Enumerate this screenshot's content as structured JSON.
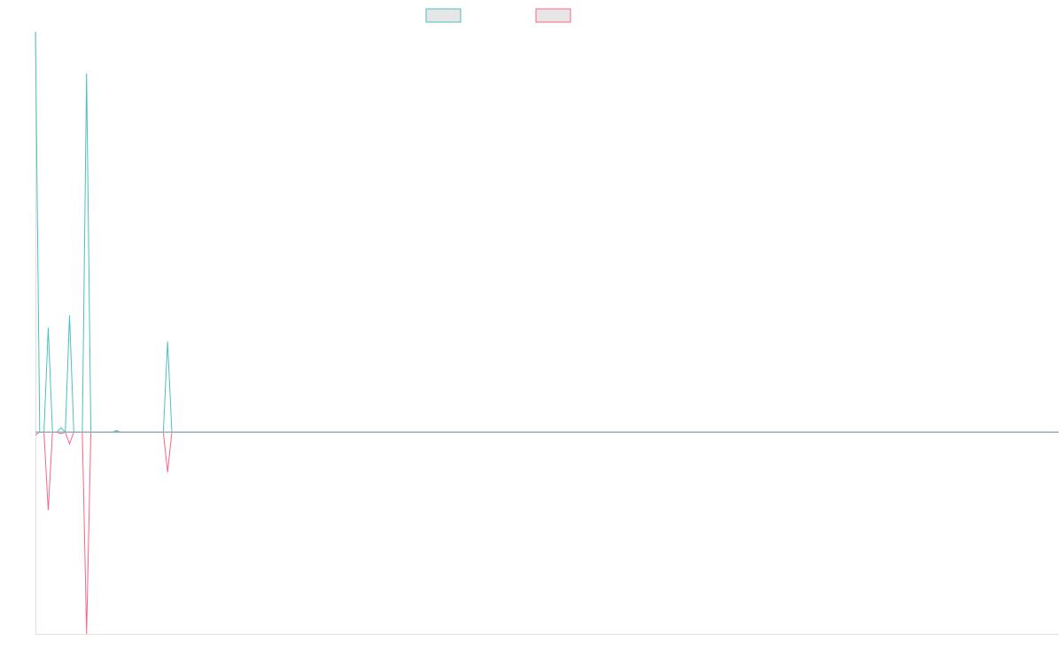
{
  "chart_data": {
    "type": "line",
    "title": "",
    "xlabel": "",
    "ylabel": "",
    "xlim": [
      0,
      240
    ],
    "ylim": [
      -0.504,
      1.0
    ],
    "grid": false,
    "legend_placement": "top-center",
    "series": [
      {
        "color": "#4bc0c0",
        "legend_fill": "#e6e6e6",
        "points": [
          [
            0,
            1.0
          ],
          [
            1,
            0
          ],
          [
            2,
            0
          ],
          [
            3,
            0.261
          ],
          [
            4,
            0
          ],
          [
            5,
            0
          ],
          [
            6,
            0.011
          ],
          [
            7,
            0
          ],
          [
            8,
            0.292
          ],
          [
            9,
            0
          ],
          [
            11,
            0
          ],
          [
            12,
            0.896
          ],
          [
            13,
            0
          ],
          [
            18,
            0
          ],
          [
            19,
            0.004
          ],
          [
            20,
            0
          ],
          [
            30,
            0
          ],
          [
            31,
            0.226
          ],
          [
            32,
            0
          ],
          [
            240,
            0
          ]
        ]
      },
      {
        "color": "#ff6384",
        "legend_fill": "#e6e6e6",
        "points": [
          [
            0,
            -0.007
          ],
          [
            1,
            0
          ],
          [
            2,
            0
          ],
          [
            3,
            -0.195
          ],
          [
            4,
            0
          ],
          [
            5,
            0
          ],
          [
            6,
            -0.004
          ],
          [
            7,
            0
          ],
          [
            8,
            -0.029
          ],
          [
            9,
            0
          ],
          [
            11,
            0
          ],
          [
            12,
            -0.504
          ],
          [
            13,
            0
          ],
          [
            18,
            0
          ],
          [
            19,
            0.002
          ],
          [
            20,
            0
          ],
          [
            30,
            0
          ],
          [
            31,
            -0.1
          ],
          [
            32,
            0
          ],
          [
            240,
            0
          ]
        ]
      }
    ]
  }
}
